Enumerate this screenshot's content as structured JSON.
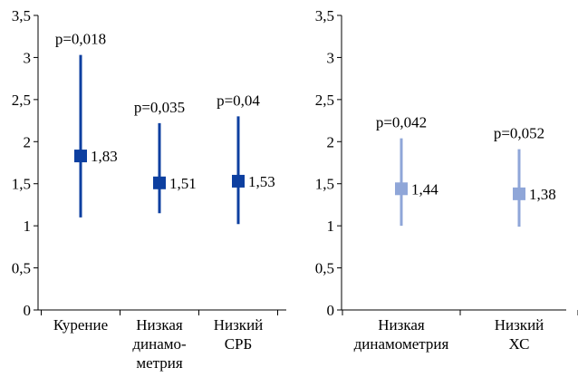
{
  "chart_data": [
    {
      "type": "scatter",
      "ylim": [
        0,
        3.5
      ],
      "yticks": [
        "0",
        "0,5",
        "1",
        "1,5",
        "2",
        "2,5",
        "3",
        "3,5"
      ],
      "ytick_values": [
        0,
        0.5,
        1,
        1.5,
        2,
        2.5,
        3,
        3.5
      ],
      "grid": false,
      "color": "#0d3fa0",
      "categories": [
        {
          "label_lines": [
            "Курение"
          ],
          "value": 1.83,
          "value_label": "1,83",
          "low": 1.1,
          "high": 3.03,
          "p_label": "p=0,018"
        },
        {
          "label_lines": [
            "Низкая",
            "динамо-",
            "метрия"
          ],
          "value": 1.51,
          "value_label": "1,51",
          "low": 1.15,
          "high": 2.22,
          "p_label": "p=0,035"
        },
        {
          "label_lines": [
            "Низкий",
            "СРБ"
          ],
          "value": 1.53,
          "value_label": "1,53",
          "low": 1.02,
          "high": 2.3,
          "p_label": "p=0,04"
        }
      ]
    },
    {
      "type": "scatter",
      "ylim": [
        0,
        3.5
      ],
      "yticks": [
        "0",
        "0,5",
        "1",
        "1,5",
        "2",
        "2,5",
        "3",
        "3,5"
      ],
      "ytick_values": [
        0,
        0.5,
        1,
        1.5,
        2,
        2.5,
        3,
        3.5
      ],
      "grid": false,
      "color": "#8fa6d8",
      "categories": [
        {
          "label_lines": [
            "Низкая",
            "динамометрия"
          ],
          "value": 1.44,
          "value_label": "1,44",
          "low": 1.0,
          "high": 2.04,
          "p_label": "p=0,042"
        },
        {
          "label_lines": [
            "Низкий",
            "ХС"
          ],
          "value": 1.38,
          "value_label": "1,38",
          "low": 0.99,
          "high": 1.91,
          "p_label": "p=0,052"
        }
      ]
    }
  ]
}
